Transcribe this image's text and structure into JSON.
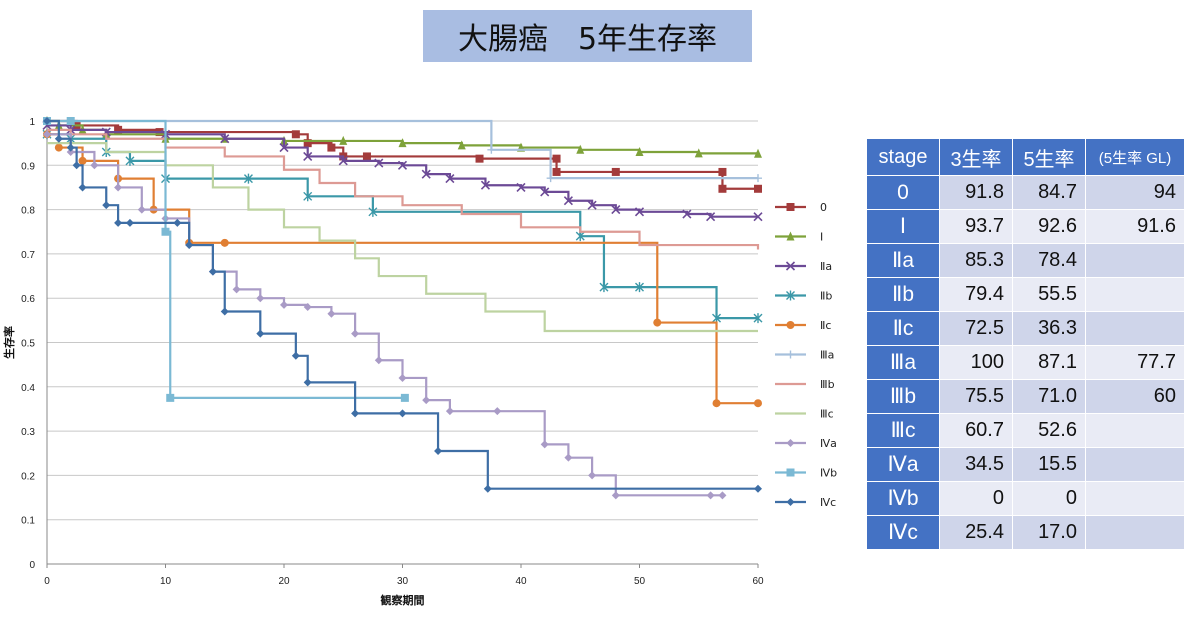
{
  "title": "大腸癌　5年生存率",
  "chart_data": {
    "type": "line",
    "step": true,
    "xlabel": "観察期間",
    "ylabel": "生存率",
    "xlim": [
      0,
      60
    ],
    "ylim": [
      0,
      1
    ],
    "xticks": [
      0,
      10,
      20,
      30,
      40,
      50,
      60
    ],
    "yticks": [
      0,
      0.1,
      0.2,
      0.3,
      0.4,
      0.5,
      0.6,
      0.7,
      0.8,
      0.9,
      1
    ],
    "xtick_labels": [
      "0",
      "10",
      "20",
      "30",
      "40",
      "50",
      "60"
    ],
    "ytick_labels": [
      "0",
      "0.1",
      "0.2",
      "0.3",
      "0.4",
      "0.5",
      "0.6",
      "0.7",
      "0.8",
      "0.9",
      "1"
    ],
    "grid": "horizontal",
    "legend_position": "right",
    "series": [
      {
        "name": "0",
        "color": "#a33b3b",
        "marker": "square",
        "x": [
          0,
          2.5,
          6,
          9.5,
          21,
          22,
          24,
          25,
          27,
          36.5,
          43,
          43,
          48,
          57,
          57,
          60
        ],
        "y": [
          1,
          0.99,
          0.98,
          0.975,
          0.97,
          0.95,
          0.94,
          0.92,
          0.92,
          0.915,
          0.915,
          0.885,
          0.885,
          0.885,
          0.847,
          0.847
        ]
      },
      {
        "name": "Ⅰ",
        "color": "#7ea23a",
        "marker": "triangle",
        "x": [
          0,
          1,
          3,
          5,
          10,
          15,
          20,
          25,
          30,
          35,
          40,
          45,
          50,
          55,
          60
        ],
        "y": [
          1,
          0.99,
          0.98,
          0.97,
          0.96,
          0.96,
          0.955,
          0.955,
          0.95,
          0.945,
          0.94,
          0.935,
          0.93,
          0.927,
          0.926
        ]
      },
      {
        "name": "Ⅱa",
        "color": "#6c4a96",
        "marker": "x",
        "x": [
          0,
          2,
          5,
          10,
          15,
          20,
          22,
          25,
          28,
          30,
          32,
          34,
          37,
          40,
          42,
          44,
          46,
          48,
          50,
          54,
          56,
          60
        ],
        "y": [
          0.99,
          0.98,
          0.975,
          0.97,
          0.96,
          0.94,
          0.92,
          0.91,
          0.905,
          0.9,
          0.88,
          0.87,
          0.855,
          0.85,
          0.84,
          0.82,
          0.81,
          0.8,
          0.795,
          0.79,
          0.784,
          0.784
        ]
      },
      {
        "name": "Ⅱb",
        "color": "#3b98a8",
        "marker": "star",
        "x": [
          0,
          2,
          5,
          7,
          10,
          17,
          22,
          27.5,
          45,
          47,
          50,
          56.5,
          60
        ],
        "y": [
          0.97,
          0.96,
          0.93,
          0.91,
          0.87,
          0.87,
          0.83,
          0.795,
          0.74,
          0.625,
          0.625,
          0.555,
          0.555
        ]
      },
      {
        "name": "Ⅱc",
        "color": "#e07f33",
        "marker": "circle",
        "x": [
          0,
          1,
          3,
          6,
          9,
          12,
          15,
          51.5,
          56.5,
          60
        ],
        "y": [
          0.97,
          0.94,
          0.91,
          0.87,
          0.8,
          0.725,
          0.725,
          0.545,
          0.363,
          0.363
        ]
      },
      {
        "name": "Ⅲa",
        "color": "#a6c0dc",
        "marker": "plus",
        "x": [
          0,
          37.5,
          42.5,
          60
        ],
        "y": [
          1,
          0.935,
          0.871,
          0.871
        ]
      },
      {
        "name": "Ⅲb",
        "color": "#dd9a94",
        "marker": "none",
        "x": [
          0,
          2,
          5,
          10,
          15,
          20,
          23,
          26,
          30,
          35,
          40,
          45,
          50,
          60
        ],
        "y": [
          0.98,
          0.97,
          0.96,
          0.94,
          0.92,
          0.89,
          0.86,
          0.83,
          0.81,
          0.79,
          0.76,
          0.75,
          0.72,
          0.71
        ]
      },
      {
        "name": "Ⅲc",
        "color": "#bdd3a1",
        "marker": "none",
        "x": [
          0,
          5,
          10,
          14,
          17,
          20,
          23,
          26,
          28,
          32,
          37,
          42,
          60
        ],
        "y": [
          0.95,
          0.93,
          0.9,
          0.85,
          0.8,
          0.76,
          0.73,
          0.69,
          0.65,
          0.61,
          0.57,
          0.526,
          0.526
        ]
      },
      {
        "name": "Ⅳa",
        "color": "#a99bc6",
        "marker": "diamond",
        "x": [
          0,
          2,
          4,
          6,
          8,
          10,
          12,
          14,
          16,
          18,
          20,
          22,
          24,
          26,
          28,
          30,
          32,
          34,
          38,
          42,
          44,
          46,
          48,
          56,
          57
        ],
        "y": [
          0.97,
          0.93,
          0.9,
          0.85,
          0.8,
          0.78,
          0.72,
          0.66,
          0.62,
          0.6,
          0.585,
          0.58,
          0.565,
          0.52,
          0.46,
          0.42,
          0.37,
          0.345,
          0.345,
          0.27,
          0.24,
          0.2,
          0.155,
          0.155,
          0.155
        ]
      },
      {
        "name": "Ⅳb",
        "color": "#7bb9d4",
        "marker": "square",
        "x": [
          0,
          2,
          10,
          10.4,
          30.2
        ],
        "y": [
          1,
          1,
          0.75,
          0.375,
          0.375
        ]
      },
      {
        "name": "Ⅳc",
        "color": "#3e6ea5",
        "marker": "diamond",
        "x": [
          0,
          1,
          2,
          2.5,
          3,
          5,
          6,
          7,
          11,
          12,
          14,
          15,
          18,
          21,
          22,
          26,
          30,
          33,
          37.2,
          60
        ],
        "y": [
          1,
          0.96,
          0.94,
          0.9,
          0.85,
          0.81,
          0.77,
          0.77,
          0.77,
          0.72,
          0.66,
          0.57,
          0.52,
          0.47,
          0.41,
          0.34,
          0.34,
          0.255,
          0.17,
          0.17
        ]
      }
    ]
  },
  "table": {
    "headers": [
      "stage",
      "3生率",
      "5生率",
      "(5生率 GL)"
    ],
    "rows": [
      {
        "stage": "0",
        "y3": "91.8",
        "y5": "84.7",
        "gl": "94"
      },
      {
        "stage": "Ⅰ",
        "y3": "93.7",
        "y5": "92.6",
        "gl": "91.6"
      },
      {
        "stage": "Ⅱa",
        "y3": "85.3",
        "y5": "78.4",
        "gl": ""
      },
      {
        "stage": "Ⅱb",
        "y3": "79.4",
        "y5": "55.5",
        "gl": ""
      },
      {
        "stage": "Ⅱc",
        "y3": "72.5",
        "y5": "36.3",
        "gl": ""
      },
      {
        "stage": "Ⅲa",
        "y3": "100",
        "y5": "87.1",
        "gl": "77.7"
      },
      {
        "stage": "Ⅲb",
        "y3": "75.5",
        "y5": "71.0",
        "gl": "60"
      },
      {
        "stage": "Ⅲc",
        "y3": "60.7",
        "y5": "52.6",
        "gl": ""
      },
      {
        "stage": "Ⅳa",
        "y3": "34.5",
        "y5": "15.5",
        "gl": ""
      },
      {
        "stage": "Ⅳb",
        "y3": "0",
        "y5": "0",
        "gl": ""
      },
      {
        "stage": "Ⅳc",
        "y3": "25.4",
        "y5": "17.0",
        "gl": ""
      }
    ]
  }
}
